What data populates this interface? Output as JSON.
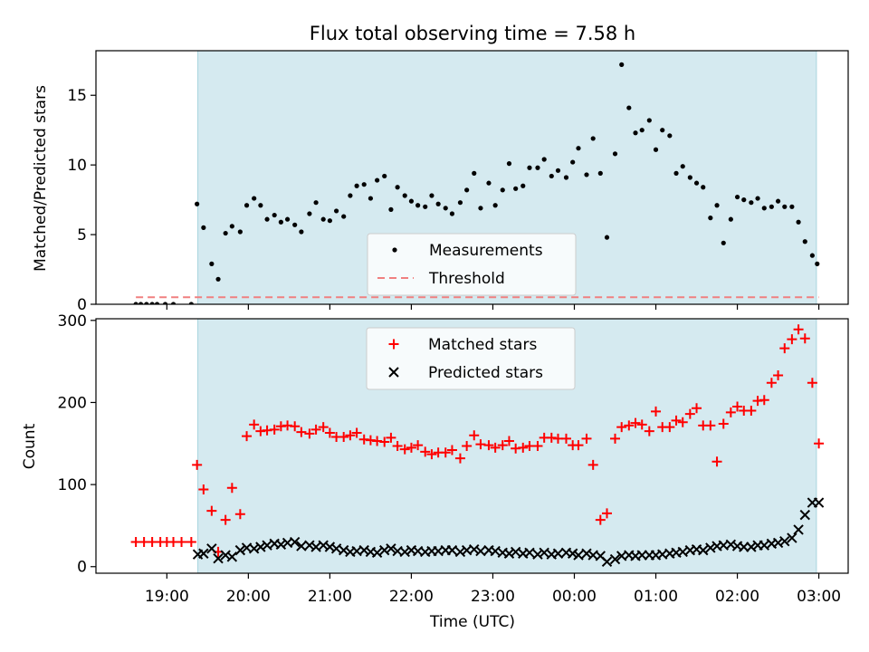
{
  "figure": {
    "title": "Flux total observing time = 7.58 h",
    "xlabel": "Time (UTC)",
    "xticks": [
      "19:00",
      "20:00",
      "21:00",
      "22:00",
      "23:00",
      "00:00",
      "01:00",
      "02:00",
      "03:00"
    ],
    "shaded_color": "#d5eaf0",
    "shaded_border": "#a9d5de"
  },
  "chart_data": [
    {
      "type": "scatter",
      "ylabel": "Matched/Predicted stars",
      "ylim": [
        0,
        18.2
      ],
      "yticks": [
        "0",
        "5",
        "10",
        "15"
      ],
      "x_axis": "time (hours after 18:00 UTC)",
      "x_range": [
        18.13,
        27.36
      ],
      "observing_window": [
        19.38,
        26.97
      ],
      "legend": {
        "position": "lower-center",
        "entries": [
          "Measurements",
          "Threshold"
        ]
      },
      "series": [
        {
          "name": "Measurements",
          "color": "#000000",
          "marker": "dot",
          "x": [
            18.62,
            18.68,
            18.75,
            18.82,
            18.88,
            18.98,
            19.08,
            19.3,
            19.37,
            19.45,
            19.55,
            19.63,
            19.72,
            19.8,
            19.9,
            19.98,
            20.07,
            20.15,
            20.23,
            20.32,
            20.4,
            20.48,
            20.57,
            20.65,
            20.75,
            20.83,
            20.92,
            21,
            21.08,
            21.17,
            21.25,
            21.33,
            21.42,
            21.5,
            21.58,
            21.67,
            21.75,
            21.83,
            21.92,
            22,
            22.08,
            22.17,
            22.25,
            22.33,
            22.42,
            22.5,
            22.6,
            22.68,
            22.77,
            22.85,
            22.95,
            23.03,
            23.12,
            23.2,
            23.28,
            23.37,
            23.45,
            23.55,
            23.63,
            23.72,
            23.8,
            23.9,
            23.98,
            24.05,
            24.15,
            24.23,
            24.32,
            24.4,
            24.5,
            24.58,
            24.67,
            24.75,
            24.83,
            24.92,
            25,
            25.08,
            25.17,
            25.25,
            25.33,
            25.42,
            25.5,
            25.58,
            25.67,
            25.75,
            25.83,
            25.92,
            26,
            26.08,
            26.17,
            26.25,
            26.33,
            26.42,
            26.5,
            26.58,
            26.67,
            26.75,
            26.83,
            26.92,
            26.98
          ],
          "y": [
            0,
            0,
            0,
            0,
            0,
            0,
            0,
            0,
            7.2,
            5.5,
            2.9,
            1.8,
            5.1,
            5.6,
            5.2,
            7.1,
            7.6,
            7.1,
            6.1,
            6.4,
            5.9,
            6.1,
            5.7,
            5.2,
            6.5,
            7.3,
            6.1,
            6,
            6.7,
            6.3,
            7.8,
            8.5,
            8.6,
            7.6,
            8.9,
            9.2,
            6.8,
            8.4,
            7.8,
            7.4,
            7.1,
            7,
            7.8,
            7.2,
            6.9,
            6.5,
            7.3,
            8.2,
            9.4,
            6.9,
            8.7,
            7.1,
            8.2,
            10.1,
            8.3,
            8.5,
            9.8,
            9.8,
            10.4,
            9.2,
            9.6,
            9.1,
            10.2,
            11.2,
            9.3,
            11.9,
            9.4,
            4.8,
            10.8,
            17.2,
            14.1,
            12.3,
            12.5,
            13.2,
            11.1,
            12.5,
            12.1,
            9.4,
            9.9,
            9.1,
            8.7,
            8.4,
            6.2,
            7.1,
            4.4,
            6.1,
            7.7,
            7.5,
            7.3,
            7.6,
            6.9,
            7,
            7.4,
            7,
            7,
            5.9,
            4.5,
            3.5,
            2.9
          ]
        },
        {
          "name": "Threshold",
          "color": "#f08080",
          "style": "dashed",
          "x": [
            18.62,
            27.0
          ],
          "y": [
            0.5,
            0.5
          ]
        }
      ]
    },
    {
      "type": "scatter",
      "ylabel": "Count",
      "ylim": [
        -8,
        302
      ],
      "yticks": [
        "0",
        "100",
        "200",
        "300"
      ],
      "x_axis": "time (hours after 18:00 UTC)",
      "x_range": [
        18.13,
        27.36
      ],
      "observing_window": [
        19.38,
        26.97
      ],
      "legend": {
        "position": "upper-center",
        "entries": [
          "Matched stars",
          "Predicted stars"
        ]
      },
      "series": [
        {
          "name": "Matched stars",
          "color": "#ff0000",
          "marker": "plus",
          "x": [
            18.62,
            18.72,
            18.82,
            18.92,
            19,
            19.08,
            19.18,
            19.3,
            19.37,
            19.45,
            19.55,
            19.63,
            19.72,
            19.8,
            19.9,
            19.98,
            20.07,
            20.15,
            20.23,
            20.32,
            20.4,
            20.48,
            20.57,
            20.65,
            20.75,
            20.83,
            20.92,
            21,
            21.08,
            21.17,
            21.25,
            21.33,
            21.42,
            21.5,
            21.58,
            21.67,
            21.75,
            21.83,
            21.92,
            22,
            22.08,
            22.17,
            22.25,
            22.33,
            22.42,
            22.5,
            22.6,
            22.68,
            22.77,
            22.85,
            22.95,
            23.03,
            23.12,
            23.2,
            23.28,
            23.37,
            23.45,
            23.55,
            23.63,
            23.72,
            23.8,
            23.9,
            23.98,
            24.05,
            24.15,
            24.23,
            24.32,
            24.4,
            24.5,
            24.58,
            24.67,
            24.75,
            24.83,
            24.92,
            25,
            25.08,
            25.17,
            25.25,
            25.33,
            25.42,
            25.5,
            25.58,
            25.67,
            25.75,
            25.83,
            25.92,
            26,
            26.08,
            26.17,
            26.25,
            26.33,
            26.42,
            26.5,
            26.58,
            26.67,
            26.75,
            26.83,
            26.92,
            27
          ],
          "y": [
            30,
            30,
            30,
            30,
            30,
            30,
            30,
            30,
            124,
            94,
            68,
            18,
            57,
            96,
            64,
            159,
            173,
            165,
            166,
            167,
            171,
            172,
            171,
            164,
            162,
            167,
            170,
            163,
            158,
            158,
            160,
            163,
            155,
            154,
            153,
            152,
            157,
            147,
            143,
            145,
            148,
            140,
            137,
            139,
            139,
            142,
            132,
            147,
            160,
            149,
            148,
            145,
            148,
            153,
            144,
            145,
            147,
            147,
            157,
            157,
            156,
            156,
            148,
            148,
            156,
            124,
            57,
            65,
            156,
            170,
            172,
            175,
            173,
            165,
            189,
            170,
            170,
            178,
            176,
            186,
            193,
            172,
            172,
            128,
            174,
            188,
            195,
            190,
            190,
            202,
            203,
            224,
            233,
            266,
            277,
            289,
            278,
            224,
            150
          ]
        },
        {
          "name": "Predicted stars",
          "color": "#000000",
          "marker": "x",
          "x": [
            19.38,
            19.45,
            19.55,
            19.63,
            19.72,
            19.8,
            19.9,
            19.98,
            20.07,
            20.15,
            20.23,
            20.32,
            20.4,
            20.48,
            20.57,
            20.65,
            20.75,
            20.83,
            20.92,
            21,
            21.08,
            21.17,
            21.25,
            21.33,
            21.42,
            21.5,
            21.58,
            21.67,
            21.75,
            21.83,
            21.92,
            22,
            22.08,
            22.17,
            22.25,
            22.33,
            22.42,
            22.5,
            22.6,
            22.68,
            22.77,
            22.85,
            22.95,
            23.03,
            23.12,
            23.2,
            23.28,
            23.37,
            23.45,
            23.55,
            23.63,
            23.72,
            23.8,
            23.9,
            23.98,
            24.05,
            24.15,
            24.23,
            24.32,
            24.4,
            24.5,
            24.58,
            24.67,
            24.75,
            24.83,
            24.92,
            25,
            25.08,
            25.17,
            25.25,
            25.33,
            25.42,
            25.5,
            25.58,
            25.67,
            25.75,
            25.83,
            25.92,
            26,
            26.08,
            26.17,
            26.25,
            26.33,
            26.42,
            26.5,
            26.58,
            26.67,
            26.75,
            26.83,
            26.92,
            27
          ],
          "y": [
            15,
            16,
            22,
            10,
            14,
            12,
            20,
            23,
            22,
            24,
            26,
            28,
            27,
            29,
            30,
            25,
            26,
            24,
            26,
            24,
            22,
            20,
            18,
            19,
            20,
            18,
            17,
            20,
            22,
            19,
            18,
            20,
            19,
            18,
            19,
            19,
            20,
            20,
            18,
            20,
            21,
            19,
            20,
            19,
            17,
            16,
            18,
            16,
            17,
            15,
            17,
            15,
            16,
            17,
            16,
            14,
            16,
            14,
            13,
            6,
            9,
            13,
            14,
            13,
            14,
            14,
            14,
            15,
            16,
            17,
            18,
            20,
            21,
            20,
            23,
            25,
            26,
            27,
            25,
            24,
            24,
            26,
            26,
            28,
            29,
            31,
            35,
            45,
            63,
            78,
            78
          ]
        }
      ]
    }
  ]
}
